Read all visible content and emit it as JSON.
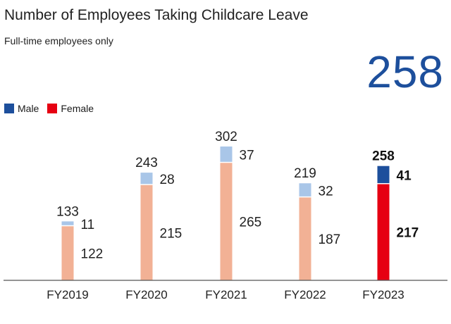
{
  "chart_data": {
    "type": "bar",
    "stacked": true,
    "title": "Number of Employees Taking Childcare Leave",
    "subtitle": "Full-time employees only",
    "highlight_value": "258",
    "categories": [
      "FY2019",
      "FY2020",
      "FY2021",
      "FY2022",
      "FY2023"
    ],
    "totals": [
      133,
      243,
      302,
      219,
      258
    ],
    "series": [
      {
        "name": "Female",
        "values": [
          122,
          215,
          265,
          187,
          217
        ]
      },
      {
        "name": "Male",
        "values": [
          11,
          28,
          37,
          32,
          41
        ]
      }
    ],
    "highlight_category": "FY2023",
    "legend": {
      "position": "top-left",
      "items": [
        "Male",
        "Female"
      ]
    },
    "ylim": [
      0,
      302
    ],
    "grid": false,
    "colors": {
      "male": "#a9c6e8",
      "female": "#f2b195",
      "male_highlight": "#1d4f9c",
      "female_highlight": "#e60012",
      "axis": "#555555"
    }
  }
}
